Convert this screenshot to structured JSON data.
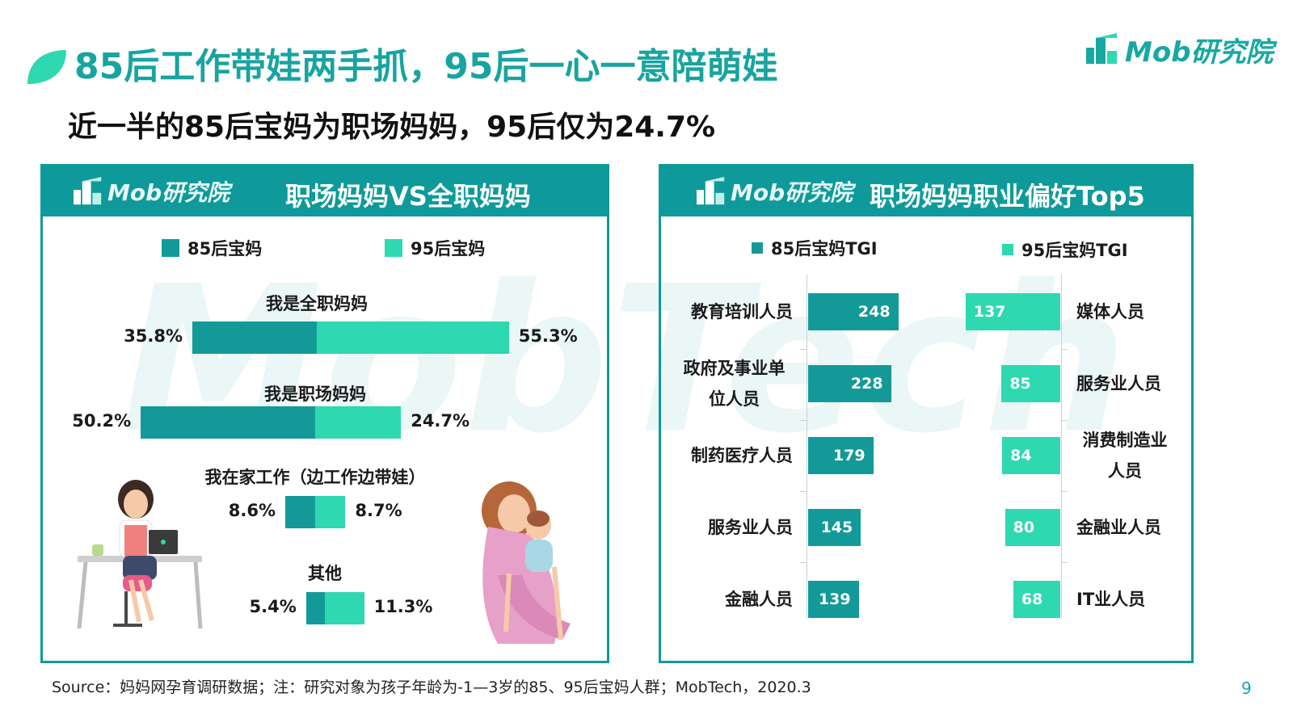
{
  "header": {
    "title": "85后工作带娃两手抓，95后一心一意陪萌娃",
    "subtitle": "近一半的85后宝妈为职场妈妈，95后仅为24.7%",
    "brand": "Mob研究院"
  },
  "watermark": "MobTech",
  "colors": {
    "teal_dark": "#139a98",
    "teal_light": "#2ed8b0",
    "title": "#18a4a0"
  },
  "left_panel": {
    "brand": "Mob研究院",
    "title": "职场妈妈VS全职妈妈"
  },
  "right_panel": {
    "brand": "Mob研究院",
    "title": "职场妈妈职业偏好Top5"
  },
  "chart_data": [
    {
      "type": "bar",
      "orientation": "horizontal-diverging",
      "title": "职场妈妈VS全职妈妈",
      "legend": [
        "85后宝妈",
        "95后宝妈"
      ],
      "categories": [
        "我是全职妈妈",
        "我是职场妈妈",
        "我在家工作（边工作边带娃）",
        "其他"
      ],
      "series": [
        {
          "name": "85后宝妈",
          "values": [
            35.8,
            50.2,
            8.6,
            5.4
          ],
          "labels": [
            "35.8%",
            "50.2%",
            "8.6%",
            "5.4%"
          ]
        },
        {
          "name": "95后宝妈",
          "values": [
            55.3,
            24.7,
            8.7,
            11.3
          ],
          "labels": [
            "55.3%",
            "24.7%",
            "8.7%",
            "11.3%"
          ]
        }
      ]
    },
    {
      "type": "bar",
      "orientation": "horizontal",
      "title": "职场妈妈职业偏好Top5",
      "series": [
        {
          "name": "85后宝妈TGI",
          "categories": [
            "教育培训人员",
            "政府及事业单位人员",
            "制药医疗人员",
            "服务业人员",
            "金融人员"
          ],
          "category_lines": [
            [
              "教育培训人员"
            ],
            [
              "政府及事业单",
              "位人员"
            ],
            [
              "制药医疗人员"
            ],
            [
              "服务业人员"
            ],
            [
              "金融人员"
            ]
          ],
          "values": [
            248,
            228,
            179,
            145,
            139
          ]
        },
        {
          "name": "95后宝妈TGI",
          "categories": [
            "媒体人员",
            "服务业人员",
            "消费制造业人员",
            "金融业人员",
            "IT业人员"
          ],
          "category_lines": [
            [
              "媒体人员"
            ],
            [
              "服务业人员"
            ],
            [
              "消费制造业",
              "人员"
            ],
            [
              "金融业人员"
            ],
            [
              "IT业人员"
            ]
          ],
          "values": [
            137,
            85,
            84,
            80,
            68
          ]
        }
      ]
    }
  ],
  "footer": {
    "source": "Source：妈妈网孕育调研数据；注：研究对象为孩子年龄为-1—3岁的85、95后宝妈人群；MobTech，2020.3",
    "page": "9"
  }
}
